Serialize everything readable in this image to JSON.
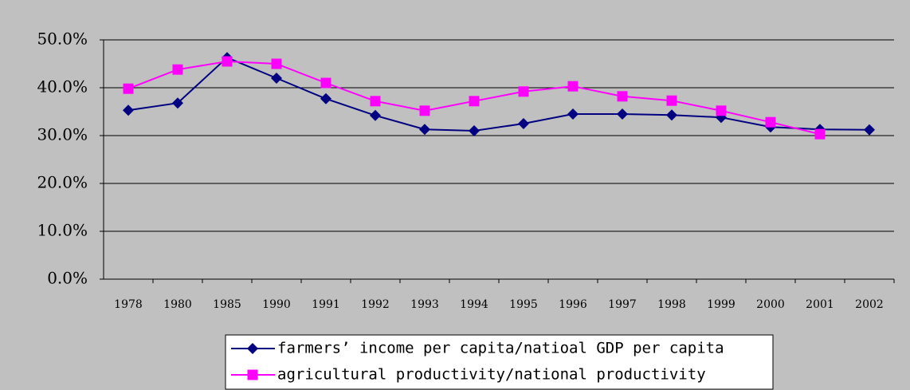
{
  "chart_data": {
    "type": "line",
    "categories": [
      "1978",
      "1980",
      "1985",
      "1990",
      "1991",
      "1992",
      "1993",
      "1994",
      "1995",
      "1996",
      "1997",
      "1998",
      "1999",
      "2000",
      "2001",
      "2002"
    ],
    "series": [
      {
        "name": "farmers’ income per capita/natioal GDP per capita",
        "color": "#000080",
        "marker": "diamond",
        "values": [
          35.3,
          36.8,
          46.3,
          42.0,
          37.7,
          34.2,
          31.3,
          31.0,
          32.5,
          34.5,
          34.5,
          34.3,
          33.8,
          31.8,
          31.3,
          31.2
        ]
      },
      {
        "name": "agricultural productivity/national productivity",
        "color": "#ff00ff",
        "marker": "square",
        "values": [
          39.8,
          43.8,
          45.5,
          45.0,
          41.0,
          37.2,
          35.2,
          37.2,
          39.2,
          40.3,
          38.2,
          37.3,
          35.2,
          32.8,
          30.3,
          null
        ]
      }
    ],
    "ylim": [
      0,
      50
    ],
    "yticks": [
      {
        "value": 0,
        "label": "0.0%"
      },
      {
        "value": 10,
        "label": "10.0%"
      },
      {
        "value": 20,
        "label": "20.0%"
      },
      {
        "value": 30,
        "label": "30.0%"
      },
      {
        "value": 40,
        "label": "40.0%"
      },
      {
        "value": 50,
        "label": "50.0%"
      }
    ],
    "grid": true
  }
}
